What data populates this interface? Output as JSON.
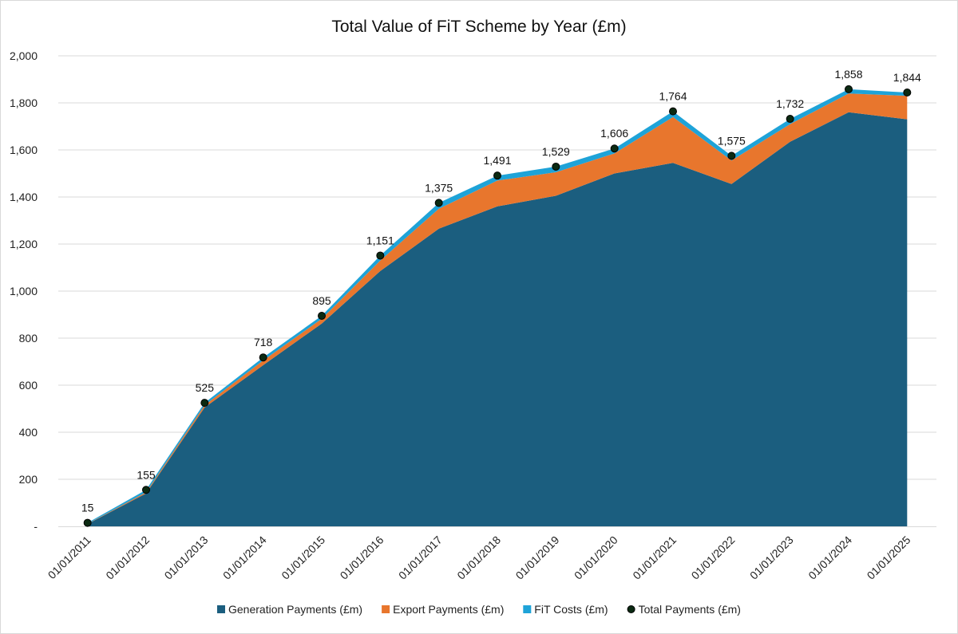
{
  "chart_data": {
    "type": "area",
    "title": "Total Value of FiT Scheme by Year (£m)",
    "categories": [
      "01/01/2011",
      "01/01/2012",
      "01/01/2013",
      "01/01/2014",
      "01/01/2015",
      "01/01/2016",
      "01/01/2017",
      "01/01/2018",
      "01/01/2019",
      "01/01/2020",
      "01/01/2021",
      "01/01/2022",
      "01/01/2023",
      "01/01/2024",
      "01/01/2025"
    ],
    "series": [
      {
        "name": "Generation Payments (£m)",
        "kind": "stacked-area",
        "color": "#1b5e7f",
        "values": [
          10,
          140,
          505,
          685,
          862,
          1085,
          1265,
          1360,
          1405,
          1500,
          1545,
          1455,
          1635,
          1760,
          1730
        ]
      },
      {
        "name": "Export Payments (£m)",
        "kind": "stacked-area",
        "color": "#e8762d",
        "values": [
          1,
          5,
          10,
          20,
          20,
          45,
          85,
          110,
          100,
          85,
          195,
          100,
          75,
          80,
          100
        ]
      },
      {
        "name": "FiT Costs (£m)",
        "kind": "stacked-area",
        "color": "#1ea3d8",
        "values": [
          4,
          10,
          10,
          13,
          13,
          21,
          25,
          21,
          24,
          21,
          24,
          20,
          22,
          18,
          14
        ]
      },
      {
        "name": "Total Payments (£m)",
        "kind": "marker",
        "color": "#0b2a12",
        "values": [
          15,
          155,
          525,
          718,
          895,
          1151,
          1375,
          1491,
          1529,
          1606,
          1764,
          1575,
          1732,
          1858,
          1844
        ],
        "labels": [
          "15",
          "155",
          "525",
          "718",
          "895",
          "1,151",
          "1,375",
          "1,491",
          "1,529",
          "1,606",
          "1,764",
          "1,575",
          "1,732",
          "1,858",
          "1,844"
        ]
      }
    ],
    "ylim": [
      0,
      2000
    ],
    "yticks": [
      0,
      200,
      400,
      600,
      800,
      1000,
      1200,
      1400,
      1600,
      1800,
      2000
    ],
    "ytick_labels": [
      "-",
      "200",
      "400",
      "600",
      "800",
      "1,000",
      "1,200",
      "1,400",
      "1,600",
      "1,800",
      "2,000"
    ],
    "xlabel": "",
    "ylabel": "",
    "grid": true,
    "legend_position": "bottom"
  }
}
